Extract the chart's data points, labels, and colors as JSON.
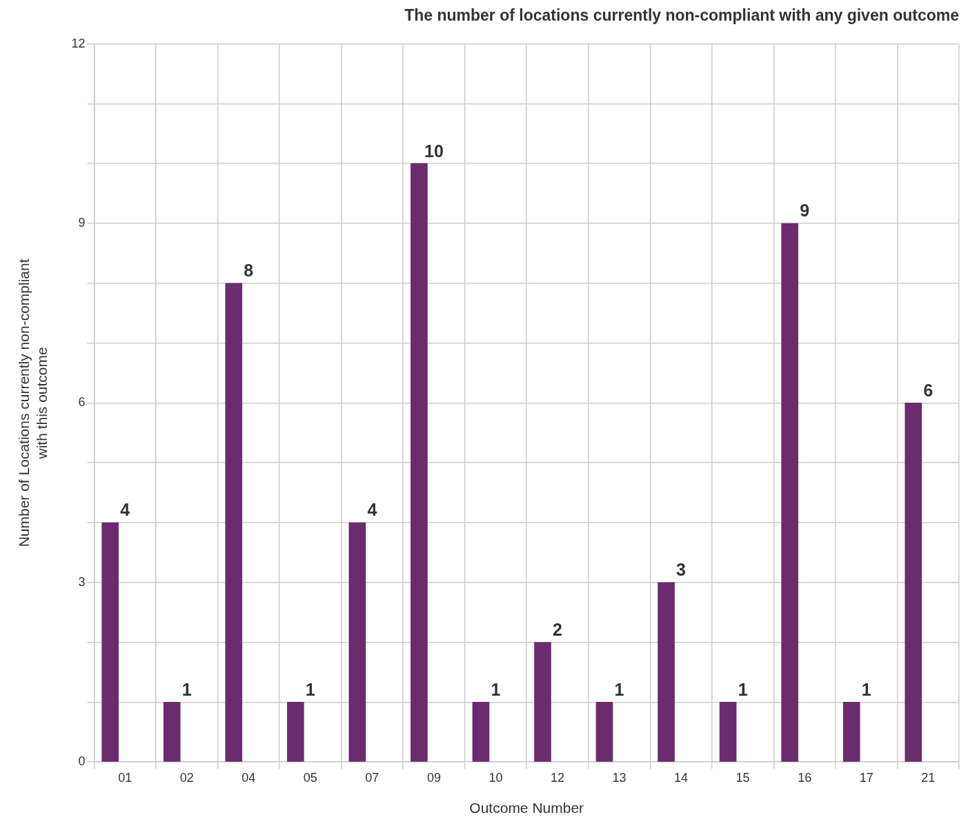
{
  "chart_data": {
    "type": "bar",
    "title": "The number of locations currently non-compliant with any given outcome",
    "xlabel": "Outcome Number",
    "ylabel": "Number of Locations currently non-compliant\nwith this outcome",
    "categories": [
      "01",
      "02",
      "04",
      "05",
      "07",
      "09",
      "10",
      "12",
      "13",
      "14",
      "15",
      "16",
      "17",
      "21"
    ],
    "values": [
      4,
      1,
      8,
      1,
      4,
      10,
      1,
      2,
      1,
      3,
      1,
      9,
      1,
      6
    ],
    "color": "#6a2c6c",
    "ylim": [
      0,
      12
    ],
    "yticks": [
      0,
      {
        "value": 1,
        "label": null
      },
      {
        "value": 2,
        "label": null
      },
      3,
      {
        "value": 4,
        "label": null
      },
      {
        "value": 5,
        "label": null
      },
      6,
      {
        "value": 7,
        "label": null
      },
      {
        "value": 8,
        "label": null
      },
      9,
      {
        "value": 10,
        "label": null
      },
      {
        "value": 11,
        "label": null
      },
      12
    ],
    "grid": true,
    "legend": false,
    "data_labels": true
  }
}
